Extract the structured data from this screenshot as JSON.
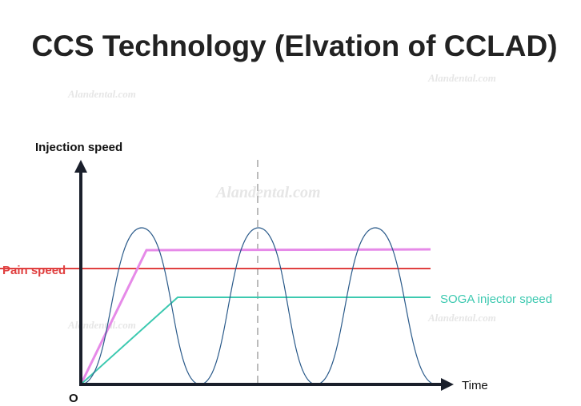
{
  "title": "CCS Technology (Elvation of CCLAD)",
  "watermark": "Alandental.com",
  "axes": {
    "y_label": "Injection speed",
    "x_label": "Time",
    "origin": "O"
  },
  "lines": {
    "pain": "Pain speed",
    "soga": "SOGA injector speed"
  }
}
